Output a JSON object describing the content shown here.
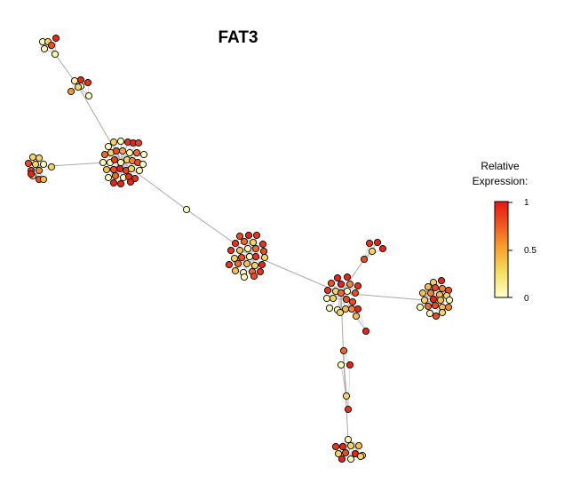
{
  "title": "FAT3",
  "legend": {
    "title_line1": "Relative",
    "title_line2": "Expression:",
    "ticks": [
      "1",
      "0.5",
      "0"
    ],
    "gradient_colors": [
      "#ffffcc",
      "#f5e067",
      "#f7a72f",
      "#ef5a20",
      "#e8160f"
    ]
  },
  "network": {
    "edge_color": "#a8a8a8",
    "node_outline": "#000000",
    "clusters": [
      {
        "center": [
          55,
          52
        ],
        "hub": [
          62,
          61
        ],
        "nodes": [
          [
            48,
            47,
            0.05
          ],
          [
            54,
            47,
            0.3
          ],
          [
            63,
            43,
            0.95
          ],
          [
            50,
            55,
            0.05
          ],
          [
            58,
            51,
            0.8
          ],
          [
            62,
            61,
            0.1
          ]
        ]
      },
      {
        "center": [
          89,
          100
        ],
        "hub": [
          88,
          97
        ],
        "nodes": [
          [
            84,
            91,
            0.1
          ],
          [
            91,
            90,
            0.95
          ],
          [
            99,
            93,
            0.9
          ],
          [
            80,
            103,
            0.55
          ],
          [
            91,
            97,
            0.05
          ],
          [
            100,
            108,
            0.05
          ],
          [
            88,
            98,
            0.3
          ]
        ]
      },
      {
        "center": [
          139,
          185
        ],
        "hub": [
          137,
          182
        ],
        "nodes": [
          [
            122,
            165,
            0.05
          ],
          [
            128,
            160,
            0.3
          ],
          [
            136,
            159,
            0.05
          ],
          [
            144,
            160,
            0.9
          ],
          [
            150,
            161,
            0.95
          ],
          [
            156,
            161,
            0.85
          ],
          [
            118,
            174,
            0.7
          ],
          [
            125,
            172,
            0.3
          ],
          [
            131,
            170,
            0.8
          ],
          [
            138,
            170,
            0.5
          ],
          [
            146,
            172,
            0.05
          ],
          [
            154,
            172,
            0.7
          ],
          [
            162,
            174,
            0.05
          ],
          [
            116,
            183,
            0.05
          ],
          [
            124,
            183,
            0.05
          ],
          [
            129,
            180,
            0.85
          ],
          [
            136,
            183,
            0.05
          ],
          [
            143,
            180,
            0.3
          ],
          [
            149,
            181,
            0.6
          ],
          [
            155,
            183,
            0.8
          ],
          [
            161,
            185,
            0.05
          ],
          [
            120,
            191,
            0.4
          ],
          [
            128,
            191,
            0.8
          ],
          [
            135,
            190,
            0.95
          ],
          [
            142,
            192,
            0.85
          ],
          [
            148,
            190,
            0.3
          ],
          [
            157,
            192,
            0.05
          ],
          [
            122,
            200,
            0.05
          ],
          [
            130,
            198,
            0.7
          ],
          [
            139,
            200,
            0.05
          ],
          [
            145,
            199,
            0.9
          ],
          [
            152,
            201,
            0.9
          ],
          [
            128,
            206,
            0.95
          ],
          [
            136,
            207,
            0.95
          ],
          [
            147,
            205,
            0.95
          ]
        ]
      },
      {
        "center": [
          42,
          189
        ],
        "hub": [
          40,
          188
        ],
        "nodes": [
          [
            37,
            177,
            0.3
          ],
          [
            44,
            178,
            0.3
          ],
          [
            32,
            184,
            0.8
          ],
          [
            40,
            185,
            0.3
          ],
          [
            49,
            185,
            0.05
          ],
          [
            58,
            188,
            0.3
          ],
          [
            35,
            192,
            0.9
          ],
          [
            44,
            192,
            0.6
          ],
          [
            37,
            198,
            0.3
          ],
          [
            44,
            202,
            0.8
          ],
          [
            49,
            202,
            0.4
          ],
          [
            35,
            196,
            0.95
          ]
        ]
      },
      {
        "center": [
          210,
          236
        ],
        "hub": [
          210,
          236
        ],
        "nodes": [
          [
            210,
            236,
            0.05
          ]
        ]
      },
      {
        "center": [
          280,
          288
        ],
        "hub": [
          281,
          286
        ],
        "nodes": [
          [
            270,
            266,
            0.8
          ],
          [
            280,
            265,
            0.95
          ],
          [
            289,
            265,
            0.9
          ],
          [
            265,
            274,
            0.9
          ],
          [
            275,
            272,
            0.7
          ],
          [
            285,
            273,
            0.3
          ],
          [
            296,
            275,
            0.9
          ],
          [
            260,
            282,
            0.9
          ],
          [
            270,
            282,
            0.4
          ],
          [
            279,
            280,
            0.05
          ],
          [
            288,
            280,
            0.7
          ],
          [
            297,
            283,
            0.8
          ],
          [
            264,
            291,
            0.3
          ],
          [
            272,
            290,
            0.8
          ],
          [
            281,
            289,
            0.05
          ],
          [
            288,
            289,
            0.9
          ],
          [
            298,
            290,
            0.3
          ],
          [
            258,
            298,
            0.9
          ],
          [
            268,
            297,
            0.7
          ],
          [
            278,
            297,
            0.4
          ],
          [
            287,
            299,
            0.3
          ],
          [
            295,
            298,
            0.95
          ],
          [
            265,
            305,
            0.4
          ],
          [
            274,
            307,
            0.05
          ],
          [
            284,
            306,
            0.7
          ],
          [
            293,
            306,
            0.9
          ],
          [
            275,
            312,
            0.05
          ],
          [
            286,
            311,
            0.8
          ]
        ]
      },
      {
        "center": [
          418,
          279
        ],
        "hub": [
          410,
          292
        ],
        "nodes": [
          [
            416,
            274,
            0.9
          ],
          [
            425,
            273,
            0.95
          ],
          [
            431,
            280,
            0.95
          ],
          [
            419,
            283,
            0.3
          ],
          [
            410,
            292,
            0.8
          ]
        ]
      },
      {
        "center": [
          385,
          330
        ],
        "hub": [
          384,
          330
        ],
        "nodes": [
          [
            380,
            313,
            0.95
          ],
          [
            391,
            312,
            0.95
          ],
          [
            373,
            319,
            0.8
          ],
          [
            384,
            320,
            0.95
          ],
          [
            394,
            320,
            0.6
          ],
          [
            403,
            322,
            0.9
          ],
          [
            369,
            327,
            0.9
          ],
          [
            378,
            328,
            0.3
          ],
          [
            391,
            328,
            0.05
          ],
          [
            400,
            330,
            0.8
          ],
          [
            368,
            336,
            0.05
          ],
          [
            375,
            336,
            0.3
          ],
          [
            384,
            330,
            0.7
          ],
          [
            390,
            337,
            0.8
          ],
          [
            397,
            340,
            0.8
          ],
          [
            371,
            347,
            0.05
          ],
          [
            380,
            349,
            0.05
          ],
          [
            389,
            348,
            0.4
          ],
          [
            396,
            348,
            0.6
          ],
          [
            403,
            348,
            0.95
          ],
          [
            383,
            352,
            0.3
          ],
          [
            401,
            356,
            0.4
          ],
          [
            412,
            373,
            0.95
          ]
        ]
      },
      {
        "center": [
          490,
          335
        ],
        "hub": [
          478,
          338
        ],
        "nodes": [
          [
            488,
            318,
            0.3
          ],
          [
            497,
            316,
            0.95
          ],
          [
            482,
            323,
            0.4
          ],
          [
            490,
            324,
            0.8
          ],
          [
            498,
            325,
            0.6
          ],
          [
            505,
            327,
            0.8
          ],
          [
            476,
            330,
            0.4
          ],
          [
            485,
            330,
            0.6
          ],
          [
            495,
            332,
            0.4
          ],
          [
            503,
            333,
            0.3
          ],
          [
            478,
            338,
            0.3
          ],
          [
            488,
            337,
            0.95
          ],
          [
            496,
            338,
            0.4
          ],
          [
            506,
            338,
            0.05
          ],
          [
            473,
            346,
            0.05
          ],
          [
            482,
            345,
            0.7
          ],
          [
            490,
            344,
            0.8
          ],
          [
            498,
            346,
            0.4
          ],
          [
            505,
            346,
            0.6
          ],
          [
            484,
            353,
            0.05
          ],
          [
            491,
            356,
            0.8
          ],
          [
            498,
            352,
            0.3
          ]
        ]
      },
      {
        "center": [
          389,
          410
        ],
        "hub": [
          387,
          409
        ],
        "nodes": [
          [
            387,
            395,
            0.7
          ],
          [
            384,
            411,
            0.05
          ],
          [
            394,
            411,
            0.95
          ],
          [
            390,
            446,
            0.3
          ],
          [
            392,
            461,
            0.9
          ]
        ]
      },
      {
        "center": [
          392,
          508
        ],
        "hub": [
          392,
          495
        ],
        "nodes": [
          [
            392,
            495,
            0.05
          ],
          [
            378,
            503,
            0.9
          ],
          [
            386,
            503,
            0.95
          ],
          [
            395,
            502,
            0.3
          ],
          [
            404,
            502,
            0.4
          ],
          [
            381,
            511,
            0.3
          ],
          [
            389,
            510,
            0.8
          ],
          [
            400,
            511,
            0.95
          ],
          [
            408,
            513,
            0.3
          ],
          [
            385,
            517,
            0.95
          ],
          [
            395,
            517,
            0.05
          ],
          [
            406,
            514,
            0.3
          ]
        ]
      }
    ],
    "links": [
      [
        1,
        0
      ],
      [
        2,
        1
      ],
      [
        2,
        3
      ],
      [
        2,
        4
      ],
      [
        4,
        5
      ],
      [
        5,
        7
      ],
      [
        7,
        6
      ],
      [
        7,
        8
      ],
      [
        7,
        9
      ],
      [
        9,
        10
      ]
    ]
  }
}
